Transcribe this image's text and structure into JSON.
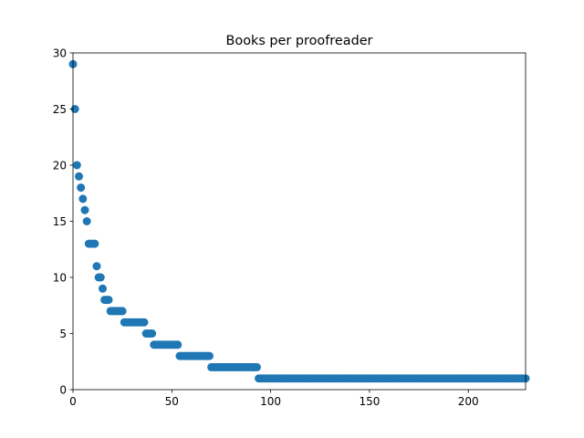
{
  "chart_data": {
    "type": "scatter",
    "title": "Books per proofreader",
    "xlabel": "",
    "ylabel": "",
    "xlim": [
      0,
      229
    ],
    "ylim": [
      0,
      30
    ],
    "x_ticks": [
      0,
      50,
      100,
      150,
      200
    ],
    "y_ticks": [
      0,
      5,
      10,
      15,
      20,
      25,
      30
    ],
    "grid": false,
    "marker_color": "#1f77b4",
    "series": [
      {
        "x": "index of sorted proofreaders (0-229)",
        "values": [
          29,
          25,
          20,
          19,
          18,
          17,
          16,
          15,
          13,
          13,
          13,
          13,
          11,
          10,
          10,
          9,
          8,
          8,
          8,
          7,
          7,
          7,
          7,
          7,
          7,
          7,
          6,
          6,
          6,
          6,
          6,
          6,
          6,
          6,
          6,
          6,
          6,
          5,
          5,
          5,
          5,
          4,
          4,
          4,
          4,
          4,
          4,
          4,
          4,
          4,
          4,
          4,
          4,
          4,
          3,
          3,
          3,
          3,
          3,
          3,
          3,
          3,
          3,
          3,
          3,
          3,
          3,
          3,
          3,
          3,
          2,
          2,
          2,
          2,
          2,
          2,
          2,
          2,
          2,
          2,
          2,
          2,
          2,
          2,
          2,
          2,
          2,
          2,
          2,
          2,
          2,
          2,
          2,
          2,
          1,
          1,
          1,
          1,
          1,
          1,
          1,
          1,
          1,
          1,
          1,
          1,
          1,
          1,
          1,
          1,
          1,
          1,
          1,
          1,
          1,
          1,
          1,
          1,
          1,
          1,
          1,
          1,
          1,
          1,
          1,
          1,
          1,
          1,
          1,
          1,
          1,
          1,
          1,
          1,
          1,
          1,
          1,
          1,
          1,
          1,
          1,
          1,
          1,
          1,
          1,
          1,
          1,
          1,
          1,
          1,
          1,
          1,
          1,
          1,
          1,
          1,
          1,
          1,
          1,
          1,
          1,
          1,
          1,
          1,
          1,
          1,
          1,
          1,
          1,
          1,
          1,
          1,
          1,
          1,
          1,
          1,
          1,
          1,
          1,
          1,
          1,
          1,
          1,
          1,
          1,
          1,
          1,
          1,
          1,
          1,
          1,
          1,
          1,
          1,
          1,
          1,
          1,
          1,
          1,
          1,
          1,
          1,
          1,
          1,
          1,
          1,
          1,
          1,
          1,
          1,
          1,
          1,
          1,
          1,
          1,
          1,
          1,
          1,
          1,
          1,
          1,
          1,
          1,
          1,
          1,
          1,
          1,
          1,
          1,
          1
        ]
      }
    ]
  }
}
